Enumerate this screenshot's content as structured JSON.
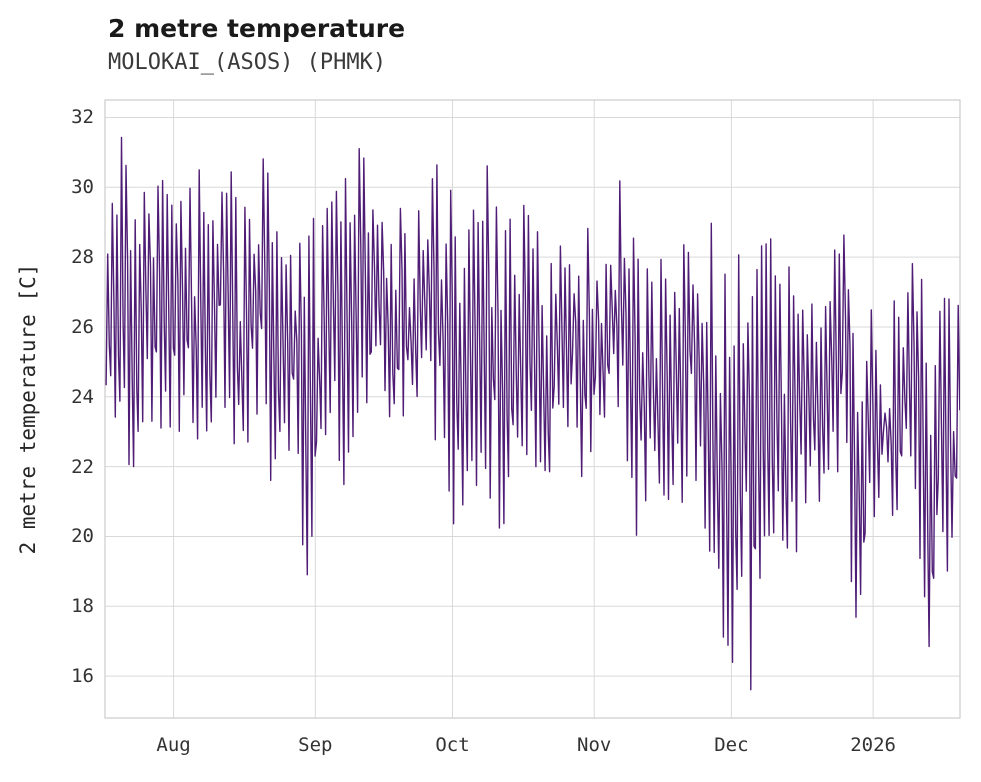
{
  "header": {
    "title": "2 metre temperature",
    "subtitle": "MOLOKAI_(ASOS) (PHMK)"
  },
  "chart_data": {
    "type": "line",
    "title": "2 metre temperature",
    "subtitle": "MOLOKAI_(ASOS) (PHMK)",
    "xlabel": "",
    "ylabel": "2 metre temperature [C]",
    "legend": false,
    "grid": true,
    "ylim": [
      14.8,
      32.5
    ],
    "x_domain": [
      0,
      187
    ],
    "y_ticks": [
      16,
      18,
      20,
      22,
      24,
      26,
      28,
      30,
      32
    ],
    "x_ticks": [
      {
        "d": 15,
        "label": "Aug"
      },
      {
        "d": 46,
        "label": "Sep"
      },
      {
        "d": 76,
        "label": "Oct"
      },
      {
        "d": 107,
        "label": "Nov"
      },
      {
        "d": 137,
        "label": "Dec"
      },
      {
        "d": 168,
        "label": "2026"
      }
    ],
    "colors": {
      "line": "#4f1d75",
      "grid": "#d9d9d9",
      "border": "#cccccc",
      "text": "#333333"
    },
    "series": [
      {
        "name": "2 metre temperature",
        "units": "C",
        "seed": 42,
        "samples_per_day": 3,
        "note": "high-frequency hourly series; envelope of daily [day, min, max] read from plot",
        "envelope": [
          [
            0,
            23.5,
            28.6
          ],
          [
            3,
            23.0,
            31.7
          ],
          [
            5,
            21.0,
            30.4
          ],
          [
            7,
            23.0,
            29.5
          ],
          [
            10,
            23.2,
            30.6
          ],
          [
            14,
            23.0,
            29.8
          ],
          [
            18,
            22.5,
            30.0
          ],
          [
            22,
            23.0,
            31.0
          ],
          [
            26,
            23.0,
            31.2
          ],
          [
            29,
            22.0,
            30.2
          ],
          [
            32,
            23.0,
            31.6
          ],
          [
            36,
            21.5,
            30.3
          ],
          [
            39,
            23.2,
            30.5
          ],
          [
            42,
            21.0,
            29.4
          ],
          [
            44,
            18.5,
            29.0
          ],
          [
            47,
            23.0,
            30.0
          ],
          [
            51,
            20.5,
            30.5
          ],
          [
            55,
            23.5,
            31.5
          ],
          [
            58,
            23.3,
            30.0
          ],
          [
            62,
            23.0,
            29.3
          ],
          [
            66,
            23.5,
            29.5
          ],
          [
            70,
            22.3,
            30.0
          ],
          [
            73,
            23.0,
            31.0
          ],
          [
            76,
            20.0,
            29.5
          ],
          [
            80,
            21.5,
            29.8
          ],
          [
            84,
            21.0,
            31.0
          ],
          [
            87,
            19.8,
            29.0
          ],
          [
            91,
            22.5,
            29.5
          ],
          [
            94,
            22.0,
            29.3
          ],
          [
            98,
            21.5,
            28.6
          ],
          [
            102,
            22.5,
            28.8
          ],
          [
            105,
            20.5,
            29.6
          ],
          [
            108,
            23.3,
            28.5
          ],
          [
            112,
            23.0,
            30.2
          ],
          [
            116,
            20.0,
            28.0
          ],
          [
            119,
            21.5,
            27.5
          ],
          [
            122,
            21.0,
            28.2
          ],
          [
            125,
            20.5,
            28.4
          ],
          [
            128,
            21.8,
            28.3
          ],
          [
            132,
            19.5,
            29.0
          ],
          [
            135,
            17.0,
            29.4
          ],
          [
            137,
            16.3,
            28.0
          ],
          [
            139,
            17.5,
            28.6
          ],
          [
            141,
            15.6,
            27.5
          ],
          [
            143,
            17.8,
            28.5
          ],
          [
            145,
            20.0,
            28.6
          ],
          [
            148,
            19.8,
            28.0
          ],
          [
            150,
            18.6,
            27.8
          ],
          [
            153,
            20.8,
            26.5
          ],
          [
            156,
            21.0,
            27.0
          ],
          [
            159,
            21.5,
            28.2
          ],
          [
            161,
            22.0,
            28.9
          ],
          [
            163,
            17.3,
            27.0
          ],
          [
            165,
            16.2,
            25.5
          ],
          [
            168,
            19.8,
            27.0
          ],
          [
            171,
            20.3,
            26.5
          ],
          [
            174,
            21.0,
            27.3
          ],
          [
            177,
            20.9,
            28.4
          ],
          [
            180,
            16.1,
            26.0
          ],
          [
            182,
            21.5,
            27.5
          ],
          [
            184,
            17.2,
            27.3
          ],
          [
            187,
            22.5,
            26.3
          ]
        ]
      }
    ]
  }
}
